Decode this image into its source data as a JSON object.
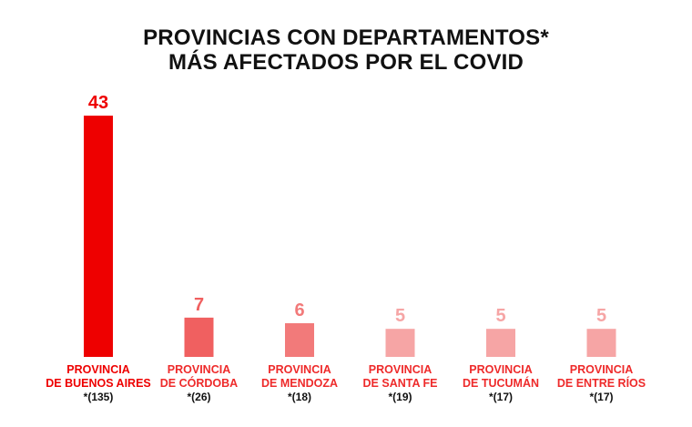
{
  "chart_data": {
    "type": "bar",
    "title": [
      "PROVINCIAS CON DEPARTAMENTOS*",
      "MÁS AFECTADOS POR EL COVID"
    ],
    "categories": [
      [
        "PROVINCIA",
        "DE BUENOS AIRES"
      ],
      [
        "PROVINCIA",
        "DE CÓRDOBA"
      ],
      [
        "PROVINCIA",
        "DE MENDOZA"
      ],
      [
        "PROVINCIA",
        "DE SANTA FE"
      ],
      [
        "PROVINCIA",
        "DE TUCUMÁN"
      ],
      [
        "PROVINCIA",
        "DE ENTRE RÍOS"
      ]
    ],
    "values": [
      43,
      7,
      6,
      5,
      5,
      5
    ],
    "notes": [
      "*(135)",
      "*(26)",
      "*(18)",
      "*(19)",
      "*(17)",
      "*(17)"
    ],
    "colors": [
      "#ee0000",
      "#f06060",
      "#f27a7a",
      "#f6a5a5",
      "#f6a5a5",
      "#f6a5a5"
    ],
    "label_colors": [
      "#ee0000",
      "#ee2a2a",
      "#ee2a2a",
      "#ee2a2a",
      "#ee2a2a",
      "#ee2a2a"
    ],
    "ylim": [
      0,
      43
    ],
    "grid": false,
    "legend": "none"
  }
}
